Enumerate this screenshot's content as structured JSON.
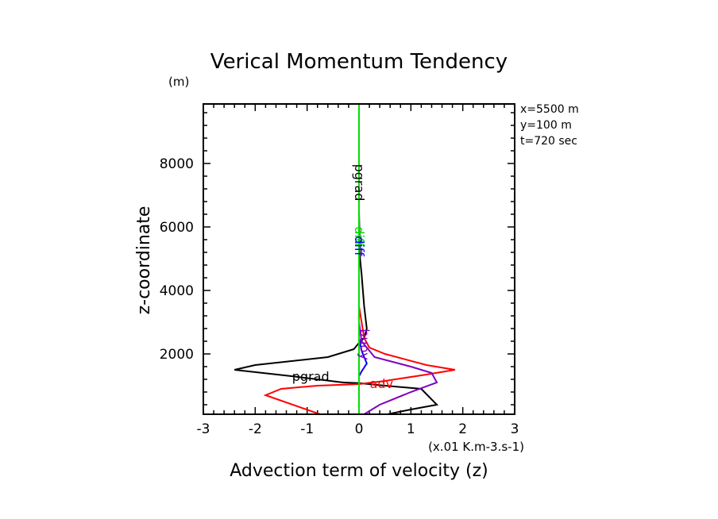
{
  "chart_data": {
    "type": "line",
    "title": "Verical Momentum Tendency",
    "ylabel_unit": "(m)",
    "xlabel": "Advection term of velocity (z)",
    "xlabel_unit": "(x.01 K.m-3.s-1)",
    "ylabel": "z-coordinate",
    "xlim": [
      -3,
      3
    ],
    "ylim": [
      100,
      9850
    ],
    "xticks": [
      "-3",
      "-2",
      "-1",
      "0",
      "1",
      "2",
      "3"
    ],
    "xtick_values": [
      -3,
      -2,
      -1,
      0,
      1,
      2,
      3
    ],
    "yticks": [
      "2000",
      "4000",
      "6000",
      "8000"
    ],
    "ytick_values": [
      2000,
      4000,
      6000,
      8000
    ],
    "info": [
      "x=5500 m",
      "y=100 m",
      "t=720 sec"
    ],
    "grid": false,
    "series": [
      {
        "name": "pgrad",
        "color": "#000000",
        "points": [
          [
            0.55,
            100
          ],
          [
            1.0,
            250
          ],
          [
            1.5,
            400
          ],
          [
            1.2,
            900
          ],
          [
            0.5,
            1000
          ],
          [
            0.0,
            1080
          ],
          [
            -0.3,
            1100
          ],
          [
            -1.3,
            1300
          ],
          [
            -2.4,
            1500
          ],
          [
            -2.0,
            1650
          ],
          [
            -0.6,
            1900
          ],
          [
            -0.1,
            2150
          ],
          [
            0.0,
            2350
          ],
          [
            0.1,
            2500
          ],
          [
            0.15,
            2800
          ],
          [
            0.1,
            3500
          ],
          [
            0.05,
            4500
          ],
          [
            0.02,
            5000
          ],
          [
            0.0,
            6500
          ],
          [
            0.0,
            9850
          ]
        ],
        "label_pos": [
          -0.9,
          1100
        ]
      },
      {
        "name": "adv",
        "color": "#ff0000",
        "points": [
          [
            -0.75,
            100
          ],
          [
            -1.8,
            700
          ],
          [
            -1.5,
            900
          ],
          [
            -0.8,
            1000
          ],
          [
            0.0,
            1050
          ],
          [
            0.5,
            1150
          ],
          [
            1.3,
            1350
          ],
          [
            1.85,
            1500
          ],
          [
            1.3,
            1650
          ],
          [
            0.5,
            2000
          ],
          [
            0.2,
            2200
          ],
          [
            0.1,
            2500
          ],
          [
            0.05,
            3000
          ],
          [
            0.0,
            3500
          ],
          [
            0.0,
            9850
          ]
        ],
        "label_pos": [
          0.25,
          1050
        ]
      },
      {
        "name": "buoy",
        "color": "#8000c0",
        "points": [
          [
            0.1,
            100
          ],
          [
            0.4,
            400
          ],
          [
            1.0,
            800
          ],
          [
            1.5,
            1100
          ],
          [
            1.4,
            1400
          ],
          [
            1.0,
            1600
          ],
          [
            0.3,
            1900
          ],
          [
            0.05,
            2400
          ],
          [
            0.0,
            3000
          ],
          [
            0.0,
            9850
          ]
        ],
        "label_pos": [
          0.1,
          2300
        ]
      },
      {
        "name": "diff",
        "color": "#0000ff",
        "points": [
          [
            0.0,
            100
          ],
          [
            0.0,
            1300
          ],
          [
            0.05,
            1450
          ],
          [
            0.15,
            1700
          ],
          [
            0.05,
            2100
          ],
          [
            0.0,
            2500
          ],
          [
            0.0,
            9850
          ]
        ],
        "label_pos": [
          0.0,
          5500
        ]
      },
      {
        "name": "diff",
        "color": "#00e000",
        "points": [
          [
            0.0,
            100
          ],
          [
            0.0,
            2200
          ],
          [
            0.0,
            9850
          ]
        ],
        "label_pos": [
          0.0,
          5700
        ]
      }
    ],
    "annotations": [
      {
        "text": "pgrad",
        "color": "#000000",
        "x": 0.0,
        "y": 7400,
        "rotated": true
      },
      {
        "text": "diff",
        "color": "#00e000",
        "x": 0.0,
        "y": 5700,
        "rotated": true
      },
      {
        "text": "diff",
        "color": "#0000ff",
        "x": 0.0,
        "y": 5400,
        "rotated": true
      },
      {
        "text": "buoy",
        "color": "#8000c0",
        "x": 0.1,
        "y": 2300,
        "rotated": true
      },
      {
        "text": "pgrad",
        "color": "#000000",
        "x": -0.9,
        "y": 1100,
        "rotated": false
      },
      {
        "text": "adv",
        "color": "#ff0000",
        "x": 0.25,
        "y": 1050,
        "rotated": false
      }
    ]
  }
}
